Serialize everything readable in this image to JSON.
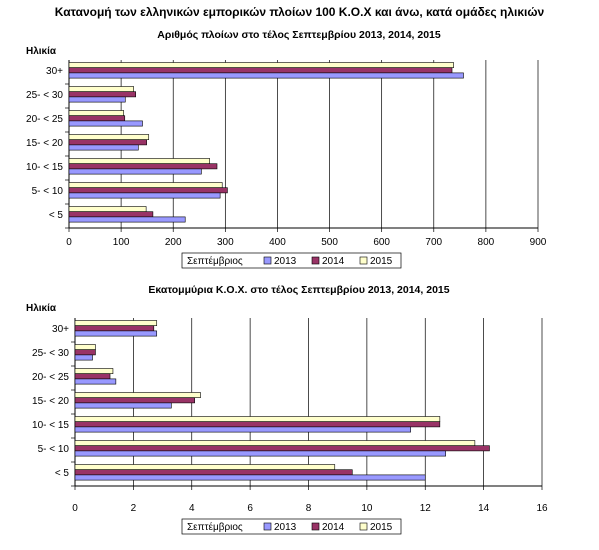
{
  "page": {
    "title": "Κατανομή των ελληνικών εμπορικών πλοίων 100 Κ.Ο.Χ και άνω, κατά ομάδες ηλικιών"
  },
  "colors": {
    "s2013": "#9999ff",
    "s2014": "#993366",
    "s2015": "#ffffcc",
    "stroke": "#000000",
    "grid": "#000000"
  },
  "chart_data": [
    {
      "type": "bar",
      "orientation": "horizontal",
      "title": "Αριθμός πλοίων στο τέλος Σεπτεμβρίου 2013, 2014, 2015",
      "ylabel": "Ηλικία",
      "categories": [
        "30+",
        "25- < 30",
        "20- < 25",
        "15- < 20",
        "10- < 15",
        "5- < 10",
        "< 5"
      ],
      "series": [
        {
          "name": "2013",
          "values": [
            757,
            108,
            141,
            133,
            254,
            290,
            223
          ]
        },
        {
          "name": "2014",
          "values": [
            735,
            128,
            107,
            149,
            284,
            304,
            161
          ]
        },
        {
          "name": "2015",
          "values": [
            738,
            124,
            105,
            153,
            270,
            294,
            148
          ]
        }
      ],
      "xlim": [
        0,
        900
      ],
      "xticks": [
        0,
        100,
        200,
        300,
        400,
        500,
        600,
        700,
        800,
        900
      ],
      "grid": true,
      "legend": {
        "title": "Σεπτέμβριος",
        "position": "bottom"
      }
    },
    {
      "type": "bar",
      "orientation": "horizontal",
      "title": "Εκατομμύρια Κ.Ο.Χ. στο τέλος Σεπτεμβρίου 2013, 2014, 2015",
      "ylabel": "Ηλικία",
      "categories": [
        "30+",
        "25- < 30",
        "20- < 25",
        "15- < 20",
        "10- < 15",
        "5- < 10",
        "< 5"
      ],
      "series": [
        {
          "name": "2013",
          "values": [
            2.8,
            0.6,
            1.4,
            3.3,
            11.5,
            12.7,
            12.0
          ]
        },
        {
          "name": "2014",
          "values": [
            2.7,
            0.7,
            1.2,
            4.1,
            12.5,
            14.2,
            9.5
          ]
        },
        {
          "name": "2015",
          "values": [
            2.8,
            0.7,
            1.3,
            4.3,
            12.5,
            13.7,
            8.9
          ]
        }
      ],
      "xlim": [
        0,
        16
      ],
      "xticks": [
        0,
        2,
        4,
        6,
        8,
        10,
        12,
        14,
        16
      ],
      "grid": true,
      "legend": {
        "title": "Σεπτέμβριος",
        "position": "bottom"
      }
    }
  ]
}
